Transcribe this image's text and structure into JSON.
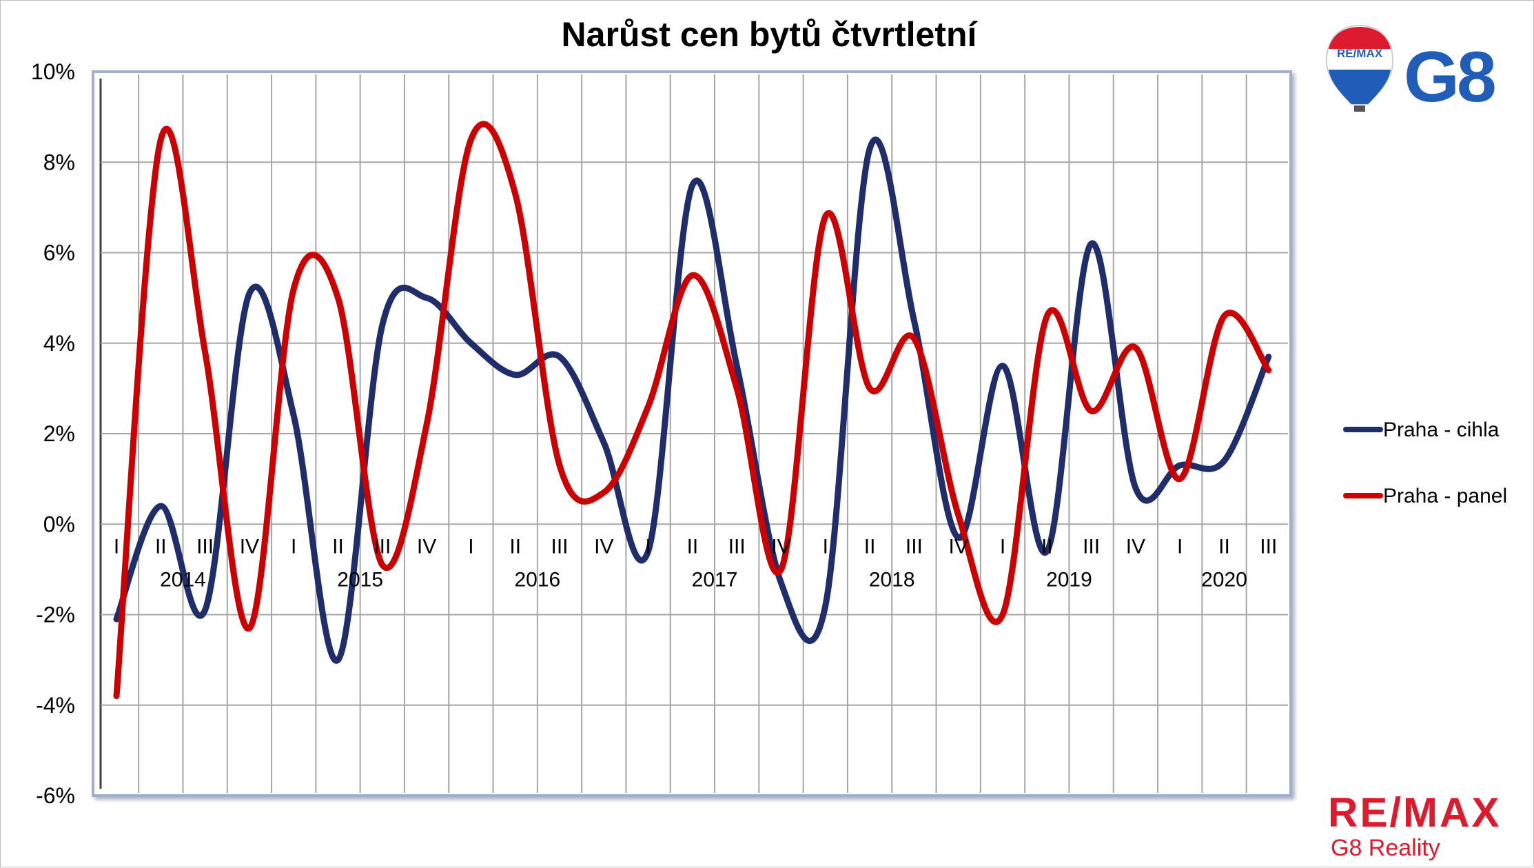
{
  "chart_data": {
    "type": "line",
    "title": "Narůst cen bytů čtvrtletní",
    "xlabel": "",
    "ylabel": "",
    "ylim": [
      -6,
      10
    ],
    "yticks": [
      -6,
      -4,
      -2,
      0,
      2,
      4,
      6,
      8,
      10
    ],
    "ytick_labels": [
      "-6%",
      "-4%",
      "-2%",
      "0%",
      "2%",
      "4%",
      "6%",
      "8%",
      "10%"
    ],
    "categories": [
      "I",
      "II",
      "III",
      "IV",
      "I",
      "II",
      "III",
      "IV",
      "I",
      "II",
      "III",
      "IV",
      "I",
      "II",
      "III",
      "IV",
      "I",
      "II",
      "III",
      "IV",
      "I",
      "II",
      "III",
      "IV",
      "I",
      "II",
      "III"
    ],
    "years": [
      {
        "label": "2014",
        "first_index": 0,
        "last_index": 3
      },
      {
        "label": "2015",
        "first_index": 4,
        "last_index": 7
      },
      {
        "label": "2016",
        "first_index": 8,
        "last_index": 11
      },
      {
        "label": "2017",
        "first_index": 12,
        "last_index": 15
      },
      {
        "label": "2018",
        "first_index": 16,
        "last_index": 19
      },
      {
        "label": "2019",
        "first_index": 20,
        "last_index": 23
      },
      {
        "label": "2020",
        "first_index": 24,
        "last_index": 26
      }
    ],
    "grid": true,
    "legend_position": "right",
    "series": [
      {
        "name": "Praha - cihla",
        "color": "#1f2d6b",
        "values": [
          -2.1,
          0.4,
          -1.9,
          5.1,
          2.4,
          -3.0,
          4.4,
          5.0,
          4.0,
          3.3,
          3.7,
          1.8,
          -0.6,
          7.5,
          3.5,
          -1.3,
          -1.8,
          8.3,
          4.5,
          -0.3,
          3.5,
          -0.6,
          6.2,
          0.8,
          1.3,
          1.4,
          3.7
        ]
      },
      {
        "name": "Praha - panel",
        "color": "#cc0000",
        "values": [
          -3.8,
          8.5,
          3.8,
          -2.3,
          5.2,
          5.0,
          -0.9,
          2.2,
          8.5,
          7.3,
          1.3,
          0.7,
          2.6,
          5.5,
          3.0,
          -1.0,
          6.8,
          3.0,
          4.1,
          0.2,
          -2.0,
          4.6,
          2.5,
          3.9,
          1.0,
          4.6,
          3.4
        ]
      }
    ]
  },
  "branding": {
    "balloon_label": "RE/MAX",
    "office_code": "G8",
    "company_name": "RE/MAX",
    "company_subtitle": "G8 Reality",
    "brand_red": "#dc1c2e",
    "brand_blue": "#1f5db8"
  }
}
